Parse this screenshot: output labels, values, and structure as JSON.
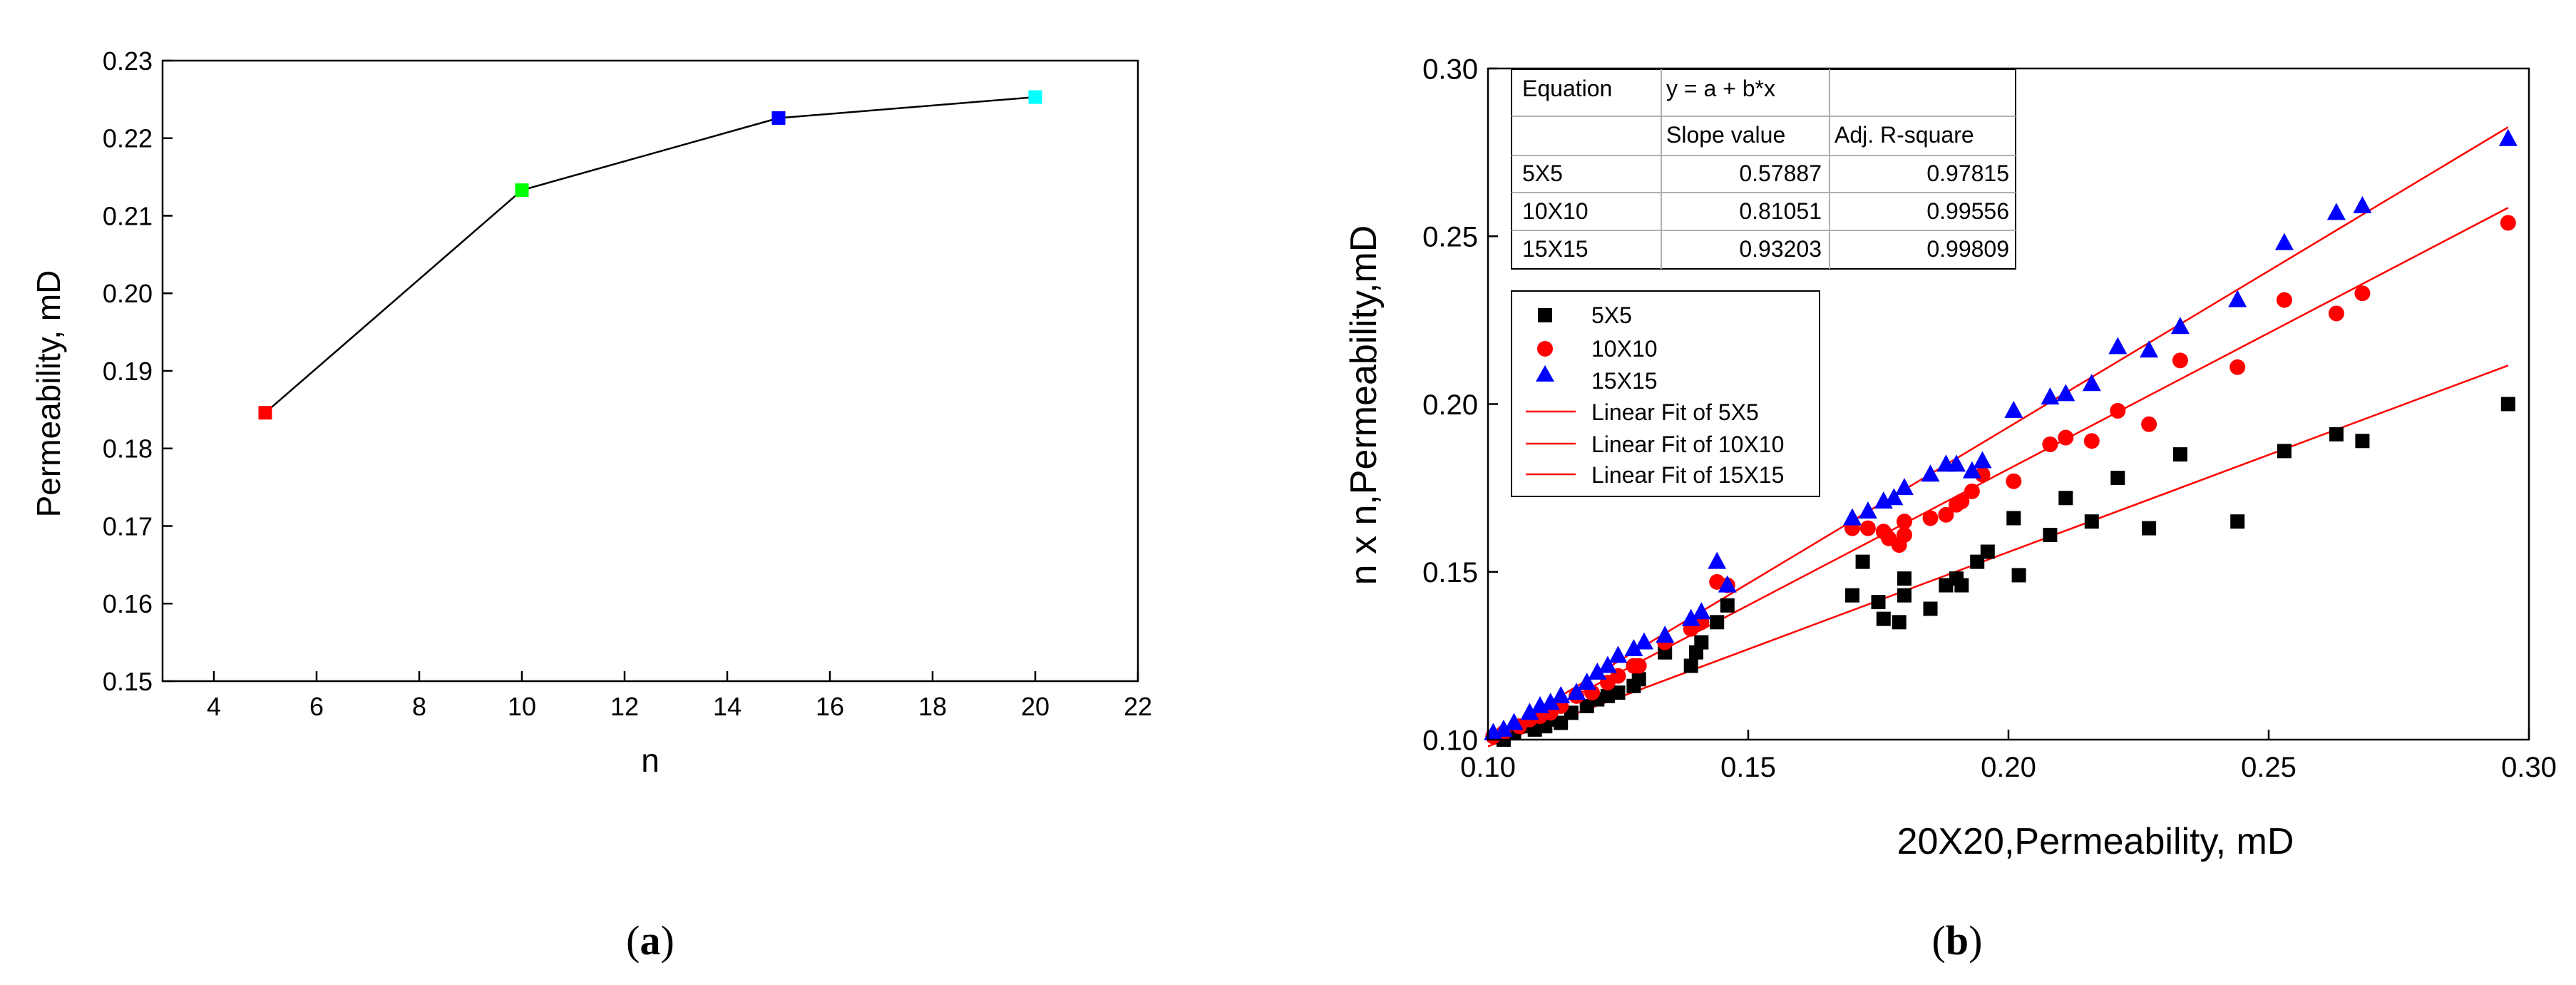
{
  "panels": {
    "a": {
      "label_open": "(",
      "label_letter": "a",
      "label_close": ")"
    },
    "b": {
      "label_open": "(",
      "label_letter": "b",
      "label_close": ")"
    }
  },
  "chart_data": [
    {
      "type": "line",
      "panel": "a",
      "xlabel": "n",
      "ylabel": "Permeability, mD",
      "xlim": [
        3,
        22
      ],
      "ylim": [
        0.15,
        0.23
      ],
      "xticks": [
        4,
        6,
        8,
        10,
        12,
        14,
        16,
        18,
        20,
        22
      ],
      "yticks": [
        0.15,
        0.16,
        0.17,
        0.18,
        0.19,
        0.2,
        0.21,
        0.22,
        0.23
      ],
      "xtick_labels": [
        "4",
        "6",
        "8",
        "10",
        "12",
        "14",
        "16",
        "18",
        "20",
        "22"
      ],
      "ytick_labels": [
        "0.15",
        "0.16",
        "0.17",
        "0.18",
        "0.19",
        "0.20",
        "0.21",
        "0.22",
        "0.23"
      ],
      "line_color": "#000000",
      "x": [
        5,
        10,
        15,
        20
      ],
      "y": [
        0.1846,
        0.2133,
        0.2226,
        0.2253
      ],
      "point_colors": [
        "#ff0000",
        "#00ff00",
        "#0000ff",
        "#00ffff"
      ]
    },
    {
      "type": "scatter",
      "panel": "b",
      "xlabel": "20X20,Permeability, mD",
      "ylabel": "n x n,Permeability,mD",
      "xlim": [
        0.1,
        0.3
      ],
      "ylim": [
        0.1,
        0.3
      ],
      "xticks": [
        0.1,
        0.15,
        0.2,
        0.25,
        0.3
      ],
      "yticks": [
        0.1,
        0.15,
        0.2,
        0.25,
        0.3
      ],
      "xtick_labels": [
        "0.10",
        "0.15",
        "0.20",
        "0.25",
        "0.30"
      ],
      "ytick_labels": [
        "0.10",
        "0.15",
        "0.20",
        "0.25",
        "0.30"
      ],
      "table": {
        "header": [
          "Equation",
          "y = a + b*x",
          ""
        ],
        "subheader": [
          "",
          "Slope value",
          "Adj. R-square"
        ],
        "rows": [
          [
            "5X5",
            "0.57887",
            "0.97815"
          ],
          [
            "10X10",
            "0.81051",
            "0.99556"
          ],
          [
            "15X15",
            "0.93203",
            "0.99809"
          ]
        ]
      },
      "legend": {
        "position": "upper-left",
        "entries": [
          {
            "label": "5X5",
            "marker": "square",
            "color": "#000000"
          },
          {
            "label": "10X10",
            "marker": "circle",
            "color": "#ff0000"
          },
          {
            "label": "15X15",
            "marker": "triangle",
            "color": "#0000ff"
          },
          {
            "label": "Linear Fit of 5X5",
            "marker": "line",
            "color": "#ff0000"
          },
          {
            "label": "Linear Fit of 10X10",
            "marker": "line",
            "color": "#ff0000"
          },
          {
            "label": "Linear Fit of 15X15",
            "marker": "line",
            "color": "#ff0000"
          }
        ]
      },
      "fit_lines": [
        {
          "name": "Linear Fit of 5X5",
          "color": "#ff0000",
          "x": [
            0.1,
            0.296
          ],
          "y": [
            0.098,
            0.2115
          ]
        },
        {
          "name": "Linear Fit of 10X10",
          "color": "#ff0000",
          "x": [
            0.1,
            0.296
          ],
          "y": [
            0.0995,
            0.2585
          ]
        },
        {
          "name": "Linear Fit of 15X15",
          "color": "#ff0000",
          "x": [
            0.1,
            0.296
          ],
          "y": [
            0.1,
            0.2825
          ]
        }
      ],
      "series": [
        {
          "name": "5X5",
          "marker": "square",
          "color": "#000000",
          "x": [
            0.103,
            0.105,
            0.107,
            0.109,
            0.111,
            0.112,
            0.114,
            0.116,
            0.119,
            0.121,
            0.123,
            0.125,
            0.128,
            0.129,
            0.134,
            0.139,
            0.14,
            0.141,
            0.144,
            0.146,
            0.17,
            0.172,
            0.175,
            0.176,
            0.179,
            0.18,
            0.18,
            0.185,
            0.188,
            0.19,
            0.191,
            0.194,
            0.196,
            0.201,
            0.202,
            0.208,
            0.211,
            0.216,
            0.221,
            0.227,
            0.233,
            0.244,
            0.253,
            0.263,
            0.268,
            0.296
          ],
          "y": [
            0.1,
            0.102,
            0.104,
            0.103,
            0.104,
            0.106,
            0.105,
            0.108,
            0.11,
            0.112,
            0.113,
            0.114,
            0.116,
            0.118,
            0.126,
            0.122,
            0.126,
            0.129,
            0.135,
            0.14,
            0.143,
            0.153,
            0.141,
            0.136,
            0.135,
            0.143,
            0.148,
            0.139,
            0.146,
            0.148,
            0.146,
            0.153,
            0.156,
            0.166,
            0.149,
            0.161,
            0.172,
            0.165,
            0.178,
            0.163,
            0.185,
            0.165,
            0.186,
            0.191,
            0.189,
            0.2
          ]
        },
        {
          "name": "10X10",
          "marker": "circle",
          "color": "#ff0000",
          "x": [
            0.101,
            0.103,
            0.106,
            0.108,
            0.11,
            0.112,
            0.114,
            0.117,
            0.12,
            0.123,
            0.125,
            0.128,
            0.129,
            0.134,
            0.139,
            0.141,
            0.144,
            0.146,
            0.17,
            0.173,
            0.176,
            0.177,
            0.179,
            0.18,
            0.18,
            0.185,
            0.188,
            0.19,
            0.191,
            0.193,
            0.195,
            0.201,
            0.208,
            0.211,
            0.216,
            0.221,
            0.227,
            0.233,
            0.244,
            0.253,
            0.263,
            0.268,
            0.296
          ],
          "y": [
            0.101,
            0.102,
            0.104,
            0.106,
            0.107,
            0.108,
            0.11,
            0.113,
            0.114,
            0.117,
            0.119,
            0.122,
            0.122,
            0.129,
            0.133,
            0.135,
            0.147,
            0.146,
            0.163,
            0.163,
            0.162,
            0.16,
            0.158,
            0.161,
            0.165,
            0.166,
            0.167,
            0.17,
            0.171,
            0.174,
            0.179,
            0.177,
            0.188,
            0.19,
            0.189,
            0.198,
            0.194,
            0.213,
            0.211,
            0.231,
            0.227,
            0.233,
            0.254
          ]
        },
        {
          "name": "15X15",
          "marker": "triangle",
          "color": "#0000ff",
          "x": [
            0.101,
            0.103,
            0.105,
            0.108,
            0.11,
            0.112,
            0.114,
            0.117,
            0.119,
            0.121,
            0.123,
            0.125,
            0.128,
            0.13,
            0.134,
            0.139,
            0.141,
            0.144,
            0.146,
            0.17,
            0.173,
            0.176,
            0.178,
            0.18,
            0.185,
            0.188,
            0.19,
            0.193,
            0.195,
            0.201,
            0.208,
            0.211,
            0.216,
            0.221,
            0.227,
            0.233,
            0.244,
            0.253,
            0.263,
            0.268,
            0.296
          ],
          "y": [
            0.102,
            0.103,
            0.105,
            0.108,
            0.11,
            0.111,
            0.113,
            0.114,
            0.117,
            0.12,
            0.122,
            0.125,
            0.127,
            0.129,
            0.131,
            0.136,
            0.138,
            0.153,
            0.146,
            0.166,
            0.168,
            0.171,
            0.172,
            0.175,
            0.179,
            0.182,
            0.182,
            0.18,
            0.183,
            0.198,
            0.202,
            0.203,
            0.206,
            0.217,
            0.216,
            0.223,
            0.231,
            0.248,
            0.257,
            0.259,
            0.279
          ]
        }
      ]
    }
  ]
}
